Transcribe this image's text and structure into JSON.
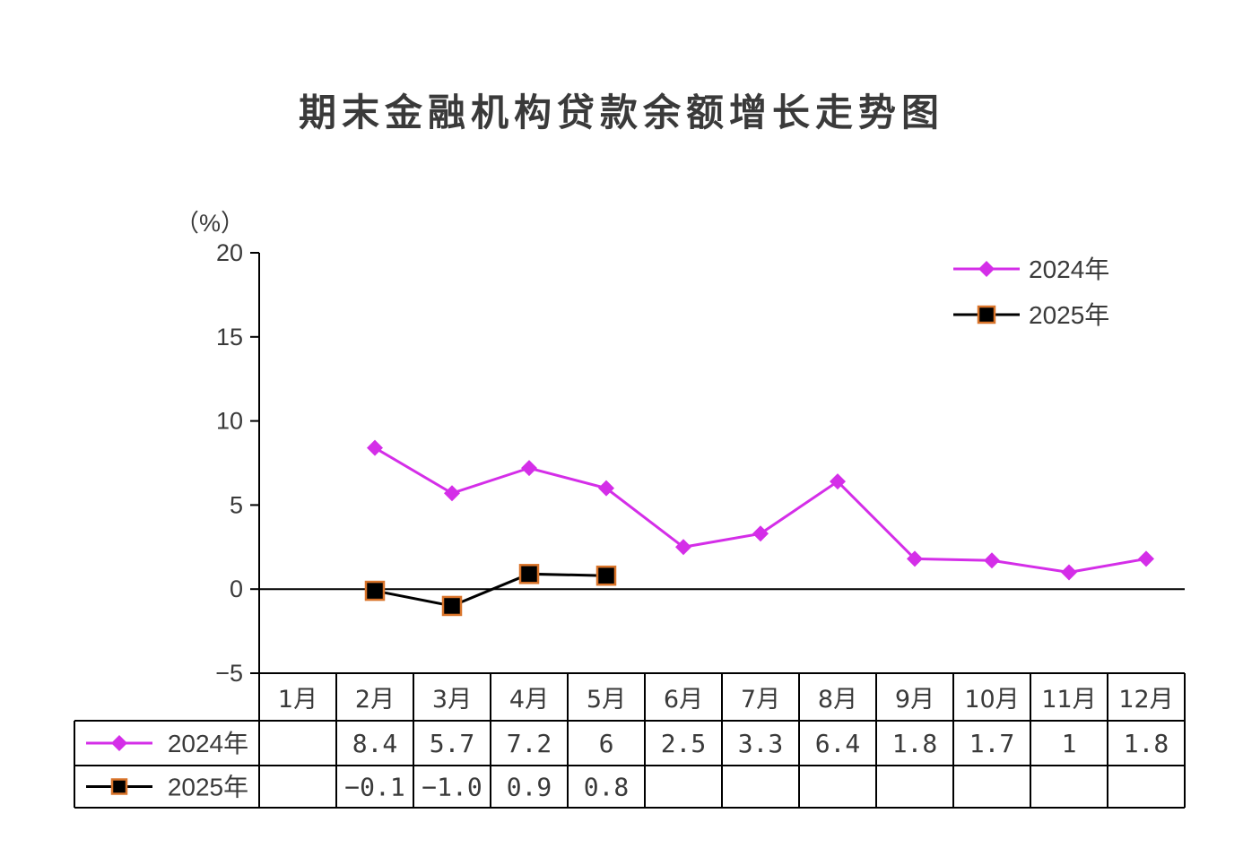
{
  "chart_data": {
    "type": "line",
    "title": "期末金融机构贷款余额增长走势图",
    "ylabel": "（%）",
    "ylim": [
      -5,
      20
    ],
    "yticks": [
      "20",
      "15",
      "10",
      "5",
      "0",
      "−5"
    ],
    "categories": [
      "1月",
      "2月",
      "3月",
      "4月",
      "5月",
      "6月",
      "7月",
      "8月",
      "9月",
      "10月",
      "11月",
      "12月"
    ],
    "legend_position": "top-right",
    "series": [
      {
        "name": "2024年",
        "color": "#d42ee8",
        "marker": "diamond",
        "values": [
          null,
          8.4,
          5.7,
          7.2,
          6,
          2.5,
          3.3,
          6.4,
          1.8,
          1.7,
          1,
          1.8
        ],
        "labels": [
          "",
          "8.4",
          "5.7",
          "7.2",
          "6",
          "2.5",
          "3.3",
          "6.4",
          "1.8",
          "1.7",
          "1",
          "1.8"
        ]
      },
      {
        "name": "2025年",
        "color": "#000000",
        "marker": "square",
        "marker_fill": "#000000",
        "marker_stroke": "#d9742a",
        "values": [
          null,
          -0.1,
          -1.0,
          0.9,
          0.8,
          null,
          null,
          null,
          null,
          null,
          null,
          null
        ],
        "labels": [
          "",
          "−0.1",
          "−1.0",
          "0.9",
          "0.8",
          "",
          "",
          "",
          "",
          "",
          "",
          ""
        ]
      }
    ]
  }
}
